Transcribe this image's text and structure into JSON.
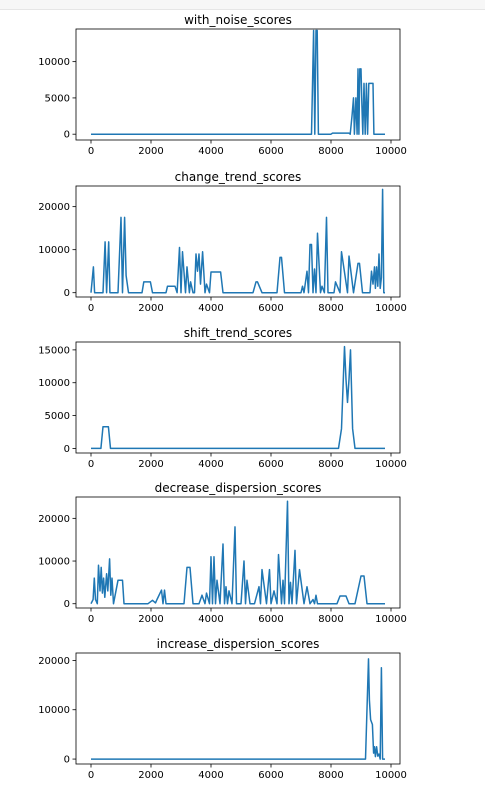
{
  "chart_data": [
    {
      "type": "line",
      "title": "with_noise_scores",
      "xlabel": "",
      "ylabel": "",
      "xlim": [
        -500,
        10300
      ],
      "ylim": [
        -800,
        14500
      ],
      "xticks": [
        0,
        2000,
        4000,
        6000,
        8000,
        10000
      ],
      "yticks": [
        0,
        5000,
        10000
      ],
      "x": [
        0,
        7350,
        7420,
        7460,
        7500,
        7540,
        7580,
        7640,
        8000,
        8050,
        8600,
        8640,
        8700,
        8750,
        8780,
        8830,
        8870,
        8900,
        8930,
        8960,
        9000,
        9030,
        9060,
        9100,
        9140,
        9180,
        9220,
        9260,
        9300,
        9350,
        9400,
        9430,
        9460,
        9800
      ],
      "series": [
        {
          "color": "#1f77b4",
          "values": [
            0,
            0,
            14300,
            0,
            14300,
            14300,
            0,
            0,
            0,
            150,
            150,
            0,
            2500,
            5000,
            0,
            5000,
            0,
            9000,
            0,
            9000,
            9000,
            4000,
            0,
            7000,
            0,
            7000,
            0,
            7000,
            7000,
            7000,
            7000,
            0,
            0,
            0
          ]
        }
      ]
    },
    {
      "type": "line",
      "title": "change_trend_scores",
      "xlabel": "",
      "ylabel": "",
      "xlim": [
        -500,
        10300
      ],
      "ylim": [
        -1000,
        24800
      ],
      "xticks": [
        0,
        2000,
        4000,
        6000,
        8000,
        10000
      ],
      "yticks": [
        0,
        10000,
        20000
      ],
      "x": [
        0,
        80,
        120,
        170,
        400,
        470,
        520,
        590,
        630,
        900,
        1000,
        1050,
        1120,
        1170,
        1250,
        1700,
        1760,
        1980,
        2050,
        2500,
        2550,
        2800,
        2870,
        2950,
        3000,
        3050,
        3150,
        3200,
        3280,
        3320,
        3400,
        3450,
        3500,
        3550,
        3600,
        3650,
        3720,
        3800,
        3850,
        3950,
        4000,
        4320,
        4400,
        5400,
        5500,
        5550,
        5700,
        6200,
        6300,
        6350,
        6450,
        7000,
        7050,
        7100,
        7200,
        7250,
        7300,
        7350,
        7400,
        7450,
        7500,
        7550,
        7650,
        7700,
        7780,
        7850,
        7900,
        8100,
        8150,
        8300,
        8350,
        8550,
        8600,
        8750,
        8900,
        8950,
        9050,
        9300,
        9350,
        9400,
        9450,
        9480,
        9520,
        9560,
        9600,
        9640,
        9680,
        9720,
        9760,
        9800
      ],
      "series": [
        {
          "color": "#1f77b4",
          "values": [
            0,
            6000,
            0,
            0,
            0,
            11800,
            0,
            11800,
            0,
            0,
            17500,
            0,
            17500,
            4000,
            0,
            0,
            2500,
            2500,
            0,
            0,
            1500,
            1500,
            0,
            10500,
            0,
            9500,
            0,
            6000,
            0,
            2500,
            0,
            0,
            9000,
            5000,
            9000,
            2000,
            9500,
            0,
            2000,
            0,
            4800,
            4800,
            0,
            0,
            2500,
            2500,
            0,
            0,
            8200,
            8200,
            0,
            0,
            1500,
            0,
            5000,
            0,
            11200,
            11200,
            0,
            5500,
            0,
            13800,
            0,
            1500,
            0,
            17500,
            0,
            0,
            2500,
            0,
            9500,
            0,
            8500,
            0,
            6800,
            6800,
            0,
            0,
            5000,
            2000,
            6000,
            1000,
            6000,
            1500,
            9000,
            1000,
            3500,
            24000,
            0,
            0
          ]
        }
      ]
    },
    {
      "type": "line",
      "title": "shift_trend_scores",
      "xlabel": "",
      "ylabel": "",
      "xlim": [
        -500,
        10300
      ],
      "ylim": [
        -700,
        16200
      ],
      "xticks": [
        0,
        2000,
        4000,
        6000,
        8000,
        10000
      ],
      "yticks": [
        0,
        5000,
        10000,
        15000
      ],
      "x": [
        0,
        330,
        400,
        580,
        650,
        8250,
        8350,
        8450,
        8500,
        8550,
        8600,
        8650,
        8720,
        8800,
        9800
      ],
      "series": [
        {
          "color": "#1f77b4",
          "values": [
            0,
            0,
            3300,
            3300,
            0,
            0,
            3000,
            15500,
            10500,
            7000,
            10500,
            15000,
            3000,
            0,
            0
          ]
        }
      ]
    },
    {
      "type": "line",
      "title": "decrease_dispersion_scores",
      "xlabel": "",
      "ylabel": "",
      "xlim": [
        -500,
        10300
      ],
      "ylim": [
        -1000,
        25000
      ],
      "xticks": [
        0,
        2000,
        4000,
        6000,
        8000,
        10000
      ],
      "yticks": [
        0,
        10000,
        20000
      ],
      "x": [
        0,
        70,
        110,
        150,
        210,
        250,
        300,
        340,
        380,
        420,
        460,
        520,
        560,
        620,
        660,
        700,
        750,
        900,
        950,
        1050,
        1100,
        1250,
        1900,
        2050,
        2150,
        2200,
        2350,
        2400,
        2450,
        2500,
        3100,
        3200,
        3300,
        3400,
        3600,
        3700,
        3800,
        3850,
        3950,
        4000,
        4050,
        4100,
        4150,
        4200,
        4300,
        4400,
        4450,
        4500,
        4550,
        4600,
        4700,
        4800,
        4850,
        5000,
        5100,
        5150,
        5200,
        5300,
        5450,
        5600,
        5650,
        5700,
        5850,
        5950,
        6000,
        6100,
        6200,
        6250,
        6350,
        6400,
        6450,
        6550,
        6600,
        6650,
        6700,
        6800,
        6850,
        6950,
        7100,
        7200,
        7300,
        7400,
        7450,
        7500,
        7550,
        7600,
        8200,
        8300,
        8500,
        8600,
        8800,
        9000,
        9100,
        9200,
        9800
      ],
      "series": [
        {
          "color": "#1f77b4",
          "values": [
            0,
            1000,
            6000,
            1000,
            0,
            9000,
            3000,
            8500,
            2500,
            6000,
            1500,
            7000,
            3000,
            10500,
            2000,
            6000,
            0,
            5500,
            5500,
            5500,
            0,
            0,
            0,
            800,
            200,
            1000,
            3200,
            0,
            3200,
            0,
            0,
            8500,
            8500,
            0,
            0,
            2000,
            0,
            2500,
            0,
            11000,
            0,
            11000,
            0,
            5500,
            0,
            14000,
            0,
            4000,
            0,
            3000,
            0,
            18000,
            0,
            0,
            10000,
            0,
            5500,
            0,
            0,
            4000,
            0,
            8000,
            0,
            8000,
            0,
            3000,
            0,
            11500,
            0,
            5500,
            0,
            24000,
            0,
            5000,
            0,
            12500,
            0,
            8000,
            0,
            4000,
            0,
            1000,
            0,
            2000,
            0,
            0,
            0,
            1800,
            1800,
            0,
            0,
            6500,
            6500,
            0,
            0
          ]
        }
      ]
    },
    {
      "type": "line",
      "title": "increase_dispersion_scores",
      "xlabel": "",
      "ylabel": "",
      "xlim": [
        -500,
        10300
      ],
      "ylim": [
        -1000,
        21500
      ],
      "xticks": [
        0,
        2000,
        4000,
        6000,
        8000,
        10000
      ],
      "yticks": [
        0,
        10000,
        20000
      ],
      "x": [
        0,
        9150,
        9250,
        9280,
        9320,
        9380,
        9420,
        9450,
        9480,
        9520,
        9560,
        9600,
        9640,
        9680,
        9720,
        9800
      ],
      "series": [
        {
          "color": "#1f77b4",
          "values": [
            0,
            0,
            20300,
            12000,
            8000,
            7000,
            1200,
            2500,
            500,
            2500,
            600,
            1000,
            0,
            18500,
            0,
            0
          ]
        }
      ]
    }
  ]
}
